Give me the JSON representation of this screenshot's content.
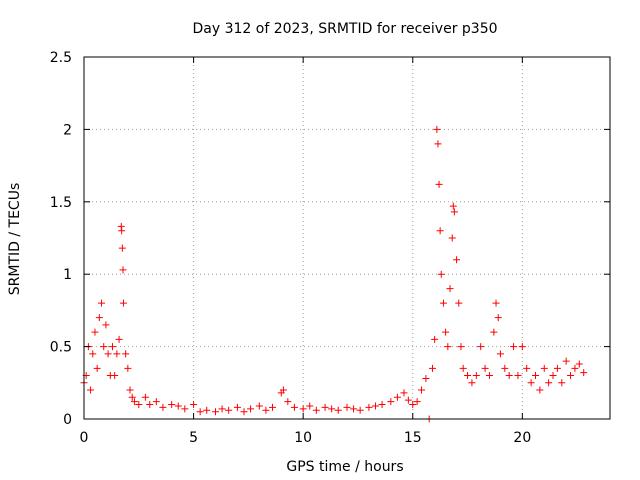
{
  "chart_data": {
    "type": "scatter",
    "title": "Day 312 of 2023, SRMTID for receiver p350",
    "xlabel": "GPS time / hours",
    "ylabel": "SRMTID / TECUs",
    "xlim": [
      0,
      24
    ],
    "ylim": [
      0,
      2.5
    ],
    "xticks": [
      0,
      5,
      10,
      15,
      20
    ],
    "yticks": [
      0,
      0.5,
      1,
      1.5,
      2,
      2.5
    ],
    "ytick_labels": [
      "0",
      "0.5",
      "1",
      "1.5",
      "2",
      "2.5"
    ],
    "grid": true,
    "series": [
      {
        "name": "SRMTID",
        "color": "#ff0000",
        "marker": "plus",
        "x": [
          0.0,
          0.1,
          0.2,
          0.3,
          0.4,
          0.5,
          0.6,
          0.7,
          0.8,
          0.9,
          1.0,
          1.1,
          1.2,
          1.3,
          1.4,
          1.5,
          1.6,
          1.7,
          1.72,
          1.75,
          1.78,
          1.8,
          1.9,
          2.0,
          2.1,
          2.2,
          2.3,
          2.5,
          2.8,
          3.0,
          3.3,
          3.6,
          4.0,
          4.3,
          4.6,
          5.0,
          5.3,
          5.6,
          6.0,
          6.3,
          6.6,
          7.0,
          7.3,
          7.6,
          8.0,
          8.3,
          8.6,
          9.0,
          9.1,
          9.3,
          9.6,
          10.0,
          10.3,
          10.6,
          11.0,
          11.3,
          11.6,
          12.0,
          12.3,
          12.6,
          13.0,
          13.3,
          13.6,
          14.0,
          14.3,
          14.6,
          14.8,
          15.0,
          15.2,
          15.4,
          15.6,
          15.75,
          15.9,
          16.0,
          16.1,
          16.15,
          16.2,
          16.25,
          16.3,
          16.4,
          16.5,
          16.6,
          16.7,
          16.8,
          16.85,
          16.9,
          17.0,
          17.1,
          17.2,
          17.3,
          17.5,
          17.7,
          17.9,
          18.1,
          18.3,
          18.5,
          18.7,
          18.8,
          18.9,
          19.0,
          19.2,
          19.4,
          19.6,
          19.8,
          20.0,
          20.2,
          20.4,
          20.6,
          20.8,
          21.0,
          21.2,
          21.4,
          21.6,
          21.8,
          22.0,
          22.2,
          22.4,
          22.6,
          22.8
        ],
        "y": [
          0.25,
          0.3,
          0.5,
          0.2,
          0.45,
          0.6,
          0.35,
          0.7,
          0.8,
          0.5,
          0.65,
          0.45,
          0.3,
          0.5,
          0.3,
          0.45,
          0.55,
          1.33,
          1.3,
          1.18,
          1.03,
          0.8,
          0.45,
          0.35,
          0.2,
          0.15,
          0.12,
          0.1,
          0.15,
          0.1,
          0.12,
          0.08,
          0.1,
          0.09,
          0.07,
          0.1,
          0.05,
          0.06,
          0.05,
          0.07,
          0.06,
          0.08,
          0.05,
          0.07,
          0.09,
          0.06,
          0.08,
          0.18,
          0.2,
          0.12,
          0.08,
          0.07,
          0.09,
          0.06,
          0.08,
          0.07,
          0.06,
          0.08,
          0.07,
          0.06,
          0.08,
          0.09,
          0.1,
          0.12,
          0.15,
          0.18,
          0.13,
          0.1,
          0.12,
          0.2,
          0.28,
          0.0,
          0.35,
          0.55,
          2.0,
          1.9,
          1.62,
          1.3,
          1.0,
          0.8,
          0.6,
          0.5,
          0.9,
          1.25,
          1.47,
          1.43,
          1.1,
          0.8,
          0.5,
          0.35,
          0.3,
          0.25,
          0.3,
          0.5,
          0.35,
          0.3,
          0.6,
          0.8,
          0.7,
          0.45,
          0.35,
          0.3,
          0.5,
          0.3,
          0.5,
          0.35,
          0.25,
          0.3,
          0.2,
          0.35,
          0.25,
          0.3,
          0.35,
          0.25,
          0.4,
          0.3,
          0.35,
          0.38,
          0.32
        ]
      }
    ]
  }
}
